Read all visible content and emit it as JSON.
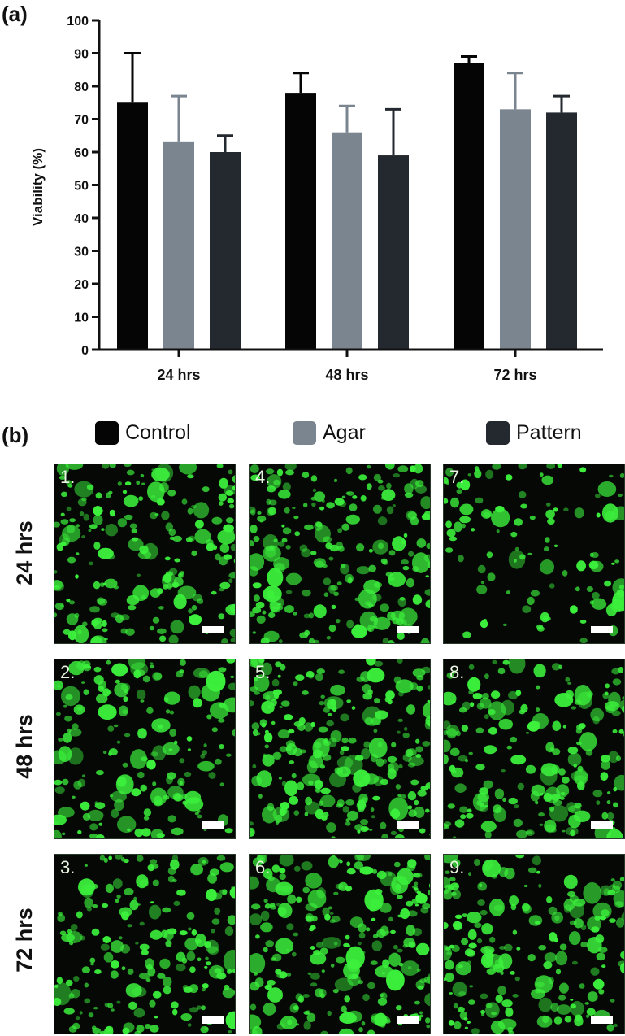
{
  "panels": {
    "a_label": "(a)",
    "b_label": "(b)"
  },
  "colors": {
    "Control": "#050505",
    "Agar": "#7a8590",
    "Pattern": "#23292e",
    "fluorescence": "#3cf03c"
  },
  "chart_data": {
    "type": "bar",
    "title": "",
    "xlabel": "",
    "ylabel": "Viability (%)",
    "ylim": [
      0,
      100
    ],
    "yticks": [
      "0",
      "10",
      "20",
      "30",
      "40",
      "50",
      "60",
      "70",
      "80",
      "90",
      "100"
    ],
    "categories": [
      "24 hrs",
      "48 hrs",
      "72 hrs"
    ],
    "series": [
      {
        "name": "Control",
        "values": [
          75,
          78,
          87
        ],
        "error": [
          15,
          6,
          2
        ]
      },
      {
        "name": "Agar",
        "values": [
          63,
          66,
          73
        ],
        "error": [
          14,
          8,
          11
        ]
      },
      {
        "name": "Pattern",
        "values": [
          60,
          59,
          72
        ],
        "error": [
          5,
          14,
          5
        ]
      }
    ],
    "error_bars": "upper"
  },
  "legend": [
    {
      "label": "Control"
    },
    {
      "label": "Agar"
    },
    {
      "label": "Pattern"
    }
  ],
  "micrographs": {
    "row_labels": [
      "24 hrs",
      "48 hrs",
      "72 hrs"
    ],
    "images": [
      {
        "number": "1.",
        "density": 0.55
      },
      {
        "number": "4.",
        "density": 0.6
      },
      {
        "number": "7.",
        "density": 0.18
      },
      {
        "number": "2.",
        "density": 0.45
      },
      {
        "number": "5.",
        "density": 0.7
      },
      {
        "number": "8.",
        "density": 0.5
      },
      {
        "number": "3.",
        "density": 0.5
      },
      {
        "number": "6.",
        "density": 0.7
      },
      {
        "number": "9.",
        "density": 0.55
      }
    ]
  }
}
